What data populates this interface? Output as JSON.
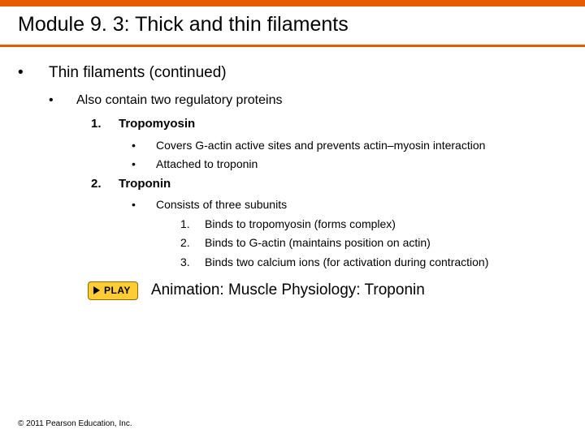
{
  "colors": {
    "accent": "#e65c00",
    "play_bg": "#ffcc33",
    "play_border": "#8a6d00",
    "text": "#000000",
    "bg": "#ffffff"
  },
  "title": "Module 9. 3: Thick and thin filaments",
  "lvl1": {
    "bullet": "•",
    "text": "Thin filaments (continued)"
  },
  "lvl2": {
    "bullet": "•",
    "text": "Also contain two regulatory proteins"
  },
  "item1": {
    "num": "1.",
    "name": "Tropomyosin",
    "sub": [
      {
        "bullet": "•",
        "text": "Covers G-actin active sites and prevents actin–myosin interaction"
      },
      {
        "bullet": "•",
        "text": "Attached to troponin"
      }
    ]
  },
  "item2": {
    "num": "2.",
    "name": "Troponin",
    "sub": [
      {
        "bullet": "•",
        "text": "Consists of three subunits"
      }
    ],
    "subunits": [
      {
        "num": "1.",
        "text": "Binds to tropomyosin (forms complex)"
      },
      {
        "num": "2.",
        "text": "Binds to G-actin (maintains position on actin)"
      },
      {
        "num": "3.",
        "text": "Binds two calcium ions (for activation during contraction)"
      }
    ]
  },
  "play": {
    "label": "PLAY",
    "caption": "Animation: Muscle Physiology: Troponin"
  },
  "copyright": "© 2011 Pearson Education, Inc."
}
